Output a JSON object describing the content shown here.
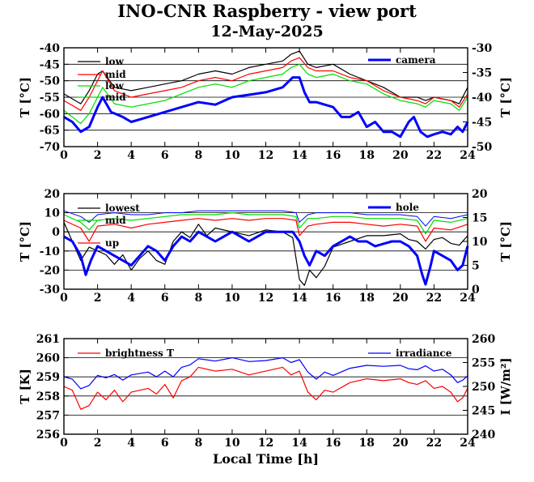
{
  "title": "INO-CNR Raspberry - view port",
  "subtitle": "12-May-2025",
  "chart_data": [
    {
      "type": "line",
      "panel": "top",
      "ylabel_left": "T [°C]",
      "ylabel_right": "T [°C]",
      "xlim": [
        0,
        24
      ],
      "xticks": [
        0,
        2,
        4,
        6,
        8,
        10,
        12,
        14,
        16,
        18,
        20,
        22,
        24
      ],
      "ylim_left": [
        -70,
        -40
      ],
      "yticks_left": [
        -70,
        -65,
        -60,
        -55,
        -50,
        -45,
        -40
      ],
      "ylim_right": [
        -50,
        -30
      ],
      "yticks_right": [
        -50,
        -45,
        -40,
        -35,
        -30
      ],
      "grid": true,
      "colors": {
        "low": "#000000",
        "mid": "#ff0000",
        "low_green": "#00dd00",
        "camera": "#0000ff"
      },
      "series": [
        {
          "name": "low",
          "axis": "left",
          "color": "#000000",
          "x": [
            0,
            1,
            1.5,
            2,
            2.3,
            3,
            4,
            5,
            6,
            7,
            8,
            9,
            10,
            11,
            12,
            13,
            13.5,
            14,
            14.5,
            15,
            16,
            17,
            18,
            19,
            20,
            21,
            21.5,
            22,
            23,
            23.5,
            24
          ],
          "y": [
            -54,
            -57,
            -53,
            -48,
            -47,
            -52,
            -53,
            -52,
            -51,
            -50,
            -48,
            -47,
            -48,
            -46,
            -45,
            -44,
            -42,
            -41,
            -45,
            -46,
            -45,
            -48,
            -50,
            -52,
            -55,
            -55,
            -56,
            -55,
            -56,
            -57,
            -52
          ]
        },
        {
          "name": "mid",
          "axis": "left",
          "color": "#ff0000",
          "x": [
            0,
            1,
            1.5,
            2,
            2.3,
            3,
            4,
            5,
            6,
            7,
            8,
            9,
            10,
            11,
            12,
            13,
            13.5,
            14,
            14.5,
            15,
            16,
            17,
            18,
            19,
            20,
            21,
            21.5,
            22,
            23,
            23.5,
            24
          ],
          "y": [
            -56,
            -59,
            -55,
            -50,
            -47,
            -53,
            -55,
            -54,
            -53,
            -52,
            -50,
            -49,
            -50,
            -48,
            -47,
            -46,
            -44,
            -43,
            -46,
            -47,
            -47,
            -49,
            -50,
            -53,
            -55,
            -56,
            -57,
            -55,
            -56,
            -58,
            -54
          ]
        },
        {
          "name": "low",
          "axis": "left",
          "color": "#00dd00",
          "x": [
            0,
            1,
            1.5,
            2,
            2.3,
            3,
            4,
            5,
            6,
            7,
            8,
            9,
            10,
            11,
            12,
            13,
            13.5,
            14,
            14.5,
            15,
            16,
            17,
            18,
            19,
            20,
            21,
            21.5,
            22,
            23,
            23.5,
            24
          ],
          "y": [
            -59,
            -63,
            -60,
            -55,
            -52,
            -57,
            -58,
            -57,
            -56,
            -54,
            -52,
            -51,
            -52,
            -50,
            -49,
            -48,
            -46,
            -45,
            -48,
            -49,
            -48,
            -50,
            -51,
            -54,
            -56,
            -57,
            -58,
            -56,
            -57,
            -59,
            -55
          ]
        },
        {
          "name": "mid",
          "axis": "left",
          "color": "#00dd00",
          "legend_only": true,
          "x": [],
          "y": []
        },
        {
          "name": "camera",
          "axis": "right",
          "color": "#0000ff",
          "width": 3,
          "x": [
            0,
            0.5,
            1,
            1.5,
            2,
            2.3,
            2.8,
            3.5,
            4,
            5,
            6,
            7,
            8,
            9,
            10,
            11,
            12,
            13,
            13.6,
            14,
            14.3,
            14.6,
            15,
            16,
            16.5,
            17,
            17.5,
            18,
            18.5,
            19,
            19.5,
            20,
            20.5,
            20.8,
            21.2,
            21.6,
            22,
            22.5,
            23,
            23.4,
            23.7,
            24
          ],
          "y": [
            -44,
            -45,
            -47,
            -46,
            -42,
            -40,
            -43,
            -44,
            -45,
            -44,
            -43,
            -42,
            -41,
            -41.5,
            -40,
            -39.5,
            -39,
            -38,
            -36,
            -36,
            -39,
            -41,
            -41,
            -42,
            -44,
            -44,
            -43,
            -46,
            -45,
            -47,
            -47,
            -48,
            -45,
            -44,
            -47,
            -48,
            -47.5,
            -47,
            -47.5,
            -46,
            -47,
            -45
          ]
        }
      ]
    },
    {
      "type": "line",
      "panel": "middle",
      "ylabel_left": "T [°C]",
      "ylabel_right": "T [°C]",
      "xlim": [
        0,
        24
      ],
      "xticks": [
        0,
        2,
        4,
        6,
        8,
        10,
        12,
        14,
        16,
        18,
        20,
        22,
        24
      ],
      "ylim_left": [
        -30,
        20
      ],
      "yticks_left": [
        -30,
        -20,
        -10,
        0,
        10,
        20
      ],
      "ylim_right": [
        0,
        20
      ],
      "yticks_right": [
        0,
        5,
        10,
        15,
        20
      ],
      "grid": true,
      "series": [
        {
          "name": "lowest",
          "axis": "left",
          "color": "#000000",
          "x": [
            0,
            0.5,
            1,
            1.5,
            2,
            2.5,
            3,
            3.5,
            4,
            4.5,
            5,
            5.5,
            6,
            6.5,
            7,
            7.5,
            8,
            8.5,
            9,
            10,
            11,
            12,
            13,
            13.6,
            14,
            14.3,
            14.6,
            15,
            15.5,
            16,
            17,
            18,
            19,
            20,
            20.5,
            21,
            21.5,
            22,
            22.5,
            23,
            23.5,
            24
          ],
          "y": [
            5,
            -5,
            -15,
            -8,
            -10,
            -12,
            -17,
            -12,
            -20,
            -14,
            -10,
            -15,
            -17,
            -5,
            0,
            -3,
            4,
            -2,
            2,
            0,
            -2,
            1,
            0,
            -3,
            -25,
            -28,
            -20,
            -24,
            -18,
            -8,
            -5,
            -2,
            -2,
            -1,
            -4,
            -5,
            -9,
            -4,
            -3,
            -6,
            -7,
            -2
          ]
        },
        {
          "name": "up",
          "axis": "left",
          "color": "#ff0000",
          "x": [
            0,
            1,
            1.5,
            2,
            3,
            4,
            5,
            6,
            7,
            8,
            9,
            10,
            11,
            12,
            13,
            13.8,
            14,
            14.5,
            15,
            16,
            17,
            18,
            19,
            20,
            21,
            21.5,
            22,
            23,
            24
          ],
          "y": [
            6,
            2,
            -5,
            3,
            4,
            2,
            4,
            5,
            6,
            7,
            6,
            7,
            6,
            7,
            7,
            6,
            -2,
            3,
            4,
            5,
            5,
            4,
            3,
            4,
            3,
            -5,
            2,
            1,
            4
          ]
        },
        {
          "name": "mid",
          "axis": "left",
          "color": "#00dd00",
          "x": [
            0,
            1,
            1.5,
            2,
            3,
            4,
            5,
            6,
            7,
            8,
            9,
            10,
            11,
            12,
            13,
            13.8,
            14,
            14.5,
            15,
            16,
            17,
            18,
            19,
            20,
            21,
            21.5,
            22,
            23,
            24
          ],
          "y": [
            9,
            5,
            1,
            6,
            7,
            6,
            7,
            8,
            9,
            9,
            9,
            10,
            9,
            9,
            9,
            8,
            2,
            7,
            7,
            8,
            8,
            7,
            7,
            7,
            6,
            -1,
            6,
            5,
            7
          ]
        },
        {
          "name": "",
          "axis": "left",
          "color": "#0000ff",
          "width": 1,
          "x": [
            0,
            1,
            1.5,
            2,
            3,
            4,
            5,
            6,
            7,
            8,
            9,
            10,
            11,
            12,
            13,
            13.8,
            14,
            14.5,
            15,
            16,
            17,
            18,
            19,
            20,
            21,
            21.5,
            22,
            23,
            24
          ],
          "y": [
            11,
            8,
            5,
            9,
            10,
            9,
            9,
            10,
            10,
            11,
            11,
            11,
            11,
            11,
            11,
            10,
            5,
            9,
            10,
            10,
            10,
            9,
            9,
            9,
            8,
            3,
            8,
            7,
            9
          ]
        },
        {
          "name": "hole",
          "axis": "right",
          "color": "#0000ff",
          "width": 3,
          "x": [
            0,
            0.5,
            1,
            1.3,
            1.6,
            2,
            2.5,
            3,
            3.5,
            4,
            4.5,
            5,
            5.5,
            6,
            6.5,
            7,
            7.5,
            8,
            8.5,
            9,
            9.5,
            10,
            10.5,
            11,
            11.5,
            12,
            13,
            13.6,
            14,
            14.3,
            14.6,
            15,
            15.5,
            16,
            16.5,
            17,
            17.5,
            18,
            18.5,
            19,
            19.5,
            20,
            20.5,
            21,
            21.3,
            21.5,
            21.8,
            22,
            22.5,
            23,
            23.4,
            23.7,
            24
          ],
          "y": [
            11,
            10,
            7,
            3,
            6,
            9,
            8,
            7,
            6,
            5,
            7,
            9,
            8,
            6,
            9,
            11,
            10,
            12,
            11,
            10,
            11,
            12,
            11,
            10,
            11,
            12,
            12,
            12,
            10,
            7,
            5,
            8,
            7,
            9,
            10,
            11,
            10,
            10,
            9,
            9.5,
            10,
            10,
            9,
            7,
            3,
            1,
            5,
            8,
            7,
            6,
            4,
            5,
            9
          ]
        }
      ]
    },
    {
      "type": "line",
      "panel": "bottom",
      "xlabel": "Local Time [h]",
      "ylabel_left": "T [K]",
      "ylabel_right": "I [W/m²]",
      "xlim": [
        0,
        24
      ],
      "xticks": [
        0,
        2,
        4,
        6,
        8,
        10,
        12,
        14,
        16,
        18,
        20,
        22,
        24
      ],
      "ylim_left": [
        256,
        261
      ],
      "yticks_left": [
        256,
        257,
        258,
        259,
        260,
        261
      ],
      "ylim_right": [
        240,
        260
      ],
      "yticks_right": [
        240,
        245,
        250,
        255,
        260
      ],
      "grid": true,
      "series": [
        {
          "name": "brightness T",
          "axis": "left",
          "color": "#ff0000",
          "x": [
            0,
            0.5,
            1,
            1.5,
            2,
            2.5,
            3,
            3.5,
            4,
            5,
            5.5,
            6,
            6.5,
            7,
            7.5,
            8,
            9,
            10,
            11,
            12,
            13,
            13.5,
            14,
            14.5,
            15,
            15.5,
            16,
            17,
            18,
            19,
            20,
            20.5,
            21,
            21.5,
            22,
            22.5,
            23,
            23.4,
            23.7,
            24
          ],
          "y": [
            258.5,
            258.3,
            257.3,
            257.5,
            258.2,
            257.8,
            258.3,
            257.7,
            258.2,
            258.4,
            258.1,
            258.6,
            257.9,
            258.8,
            259,
            259.5,
            259.3,
            259.4,
            259.1,
            259.3,
            259.5,
            259.1,
            259.3,
            258.2,
            257.8,
            258.3,
            258.2,
            258.7,
            258.9,
            258.8,
            258.9,
            258.7,
            258.6,
            258.8,
            258.4,
            258.5,
            258.2,
            257.7,
            257.9,
            258.4
          ]
        },
        {
          "name": "irradiance",
          "axis": "right",
          "color": "#0000ff",
          "x": [
            0,
            0.5,
            1,
            1.5,
            2,
            2.5,
            3,
            3.5,
            4,
            5,
            5.5,
            6,
            6.5,
            7,
            7.5,
            8,
            9,
            10,
            11,
            12,
            13,
            13.5,
            14,
            14.5,
            15,
            15.5,
            16,
            17,
            18,
            19,
            20,
            20.5,
            21,
            21.5,
            22,
            22.5,
            23,
            23.4,
            23.7,
            24
          ],
          "y": [
            252,
            251.5,
            249.5,
            250.2,
            252.3,
            251.8,
            252.5,
            251.3,
            252.4,
            253,
            252,
            253.2,
            252,
            254,
            254.5,
            255.8,
            255.3,
            256,
            255.2,
            255.4,
            256,
            255,
            255.6,
            253,
            251.5,
            253,
            252.3,
            253.8,
            254.4,
            254.2,
            254.4,
            253.7,
            253.5,
            254.3,
            253.2,
            253.6,
            252.4,
            250.8,
            251.3,
            252.2
          ]
        }
      ]
    }
  ]
}
